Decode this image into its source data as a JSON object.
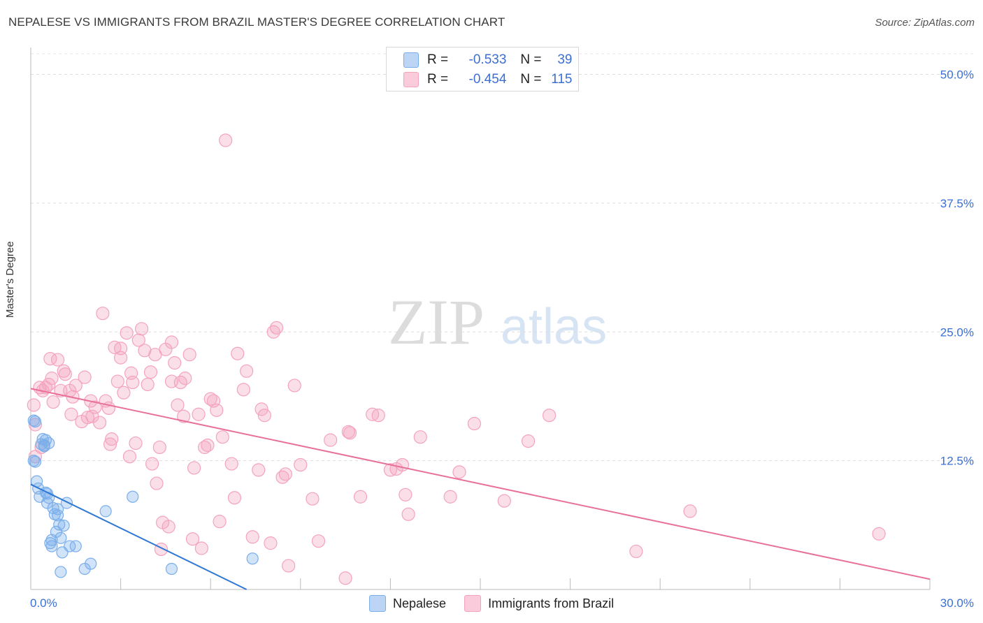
{
  "header": {
    "title": "NEPALESE VS IMMIGRANTS FROM BRAZIL MASTER'S DEGREE CORRELATION CHART",
    "source": "Source: ZipAtlas.com"
  },
  "watermark": {
    "zip": "ZIP",
    "atlas": "atlas"
  },
  "legend": {
    "nepalese": {
      "r_label": "R =",
      "r_value": "-0.533",
      "n_label": "N =",
      "n_value": "39"
    },
    "brazil": {
      "r_label": "R =",
      "r_value": "-0.454",
      "n_label": "N =",
      "n_value": "115"
    }
  },
  "chart_data": {
    "type": "scatter",
    "title": "NEPALESE VS IMMIGRANTS FROM BRAZIL MASTER'S DEGREE CORRELATION CHART",
    "xlabel": "",
    "ylabel": "Master's Degree",
    "xlim": [
      0,
      30
    ],
    "ylim": [
      0,
      52
    ],
    "x_tick_labels": [
      "0.0%",
      "30.0%"
    ],
    "y_ticks": [
      12.5,
      25.0,
      37.5,
      50.0
    ],
    "y_tick_labels": [
      "12.5%",
      "25.0%",
      "37.5%",
      "50.0%"
    ],
    "grid": "horizontal dashed",
    "legend_placement": "top-center",
    "colors": {
      "nepalese": "#7aaeea",
      "nepalese_line": "#2f78d4",
      "brazil": "#f4a3bd",
      "brazil_line": "#e8709a",
      "axis_text": "#3b6fd4"
    },
    "series": [
      {
        "name": "Nepalese",
        "r": -0.533,
        "n": 39,
        "trend": {
          "x": [
            0.0,
            7.2
          ],
          "y": [
            10.2,
            0.0
          ]
        },
        "points": [
          [
            0.1,
            16.4
          ],
          [
            0.15,
            16.3
          ],
          [
            0.1,
            12.5
          ],
          [
            0.15,
            12.4
          ],
          [
            0.2,
            10.5
          ],
          [
            0.25,
            9.8
          ],
          [
            0.3,
            9.0
          ],
          [
            0.35,
            14.1
          ],
          [
            0.4,
            14.6
          ],
          [
            0.45,
            14.0
          ],
          [
            0.5,
            14.5
          ],
          [
            0.55,
            9.3
          ],
          [
            0.6,
            14.2
          ],
          [
            0.55,
            8.4
          ],
          [
            0.65,
            4.5
          ],
          [
            0.7,
            4.8
          ],
          [
            0.75,
            7.9
          ],
          [
            0.8,
            7.3
          ],
          [
            0.85,
            5.6
          ],
          [
            0.9,
            7.8
          ],
          [
            0.95,
            6.3
          ],
          [
            1.0,
            5.0
          ],
          [
            1.1,
            6.2
          ],
          [
            1.05,
            3.6
          ],
          [
            1.2,
            8.4
          ],
          [
            1.3,
            4.2
          ],
          [
            1.5,
            4.2
          ],
          [
            1.8,
            2.0
          ],
          [
            2.0,
            2.5
          ],
          [
            2.5,
            7.6
          ],
          [
            3.4,
            9.0
          ],
          [
            4.7,
            2.0
          ],
          [
            7.4,
            3.0
          ],
          [
            0.6,
            8.9
          ],
          [
            1.0,
            1.7
          ],
          [
            0.9,
            7.2
          ],
          [
            0.45,
            13.9
          ],
          [
            0.7,
            4.2
          ],
          [
            0.5,
            9.4
          ]
        ]
      },
      {
        "name": "Immigrants from Brazil",
        "r": -0.454,
        "n": 115,
        "trend": {
          "x": [
            0.0,
            30.0
          ],
          "y": [
            19.5,
            1.0
          ]
        },
        "points": [
          [
            0.1,
            17.9
          ],
          [
            0.15,
            16.0
          ],
          [
            0.15,
            12.9
          ],
          [
            0.3,
            19.6
          ],
          [
            0.35,
            13.8
          ],
          [
            0.4,
            19.3
          ],
          [
            0.5,
            19.6
          ],
          [
            0.6,
            19.9
          ],
          [
            0.65,
            22.4
          ],
          [
            0.7,
            20.5
          ],
          [
            0.75,
            18.2
          ],
          [
            0.9,
            22.3
          ],
          [
            1.0,
            19.3
          ],
          [
            1.1,
            21.2
          ],
          [
            1.15,
            20.9
          ],
          [
            1.3,
            19.3
          ],
          [
            1.35,
            17.0
          ],
          [
            1.4,
            18.7
          ],
          [
            1.5,
            19.8
          ],
          [
            1.7,
            16.3
          ],
          [
            1.8,
            20.6
          ],
          [
            1.9,
            16.7
          ],
          [
            2.0,
            18.3
          ],
          [
            2.05,
            16.8
          ],
          [
            2.15,
            17.7
          ],
          [
            2.3,
            16.2
          ],
          [
            2.4,
            26.8
          ],
          [
            2.5,
            18.3
          ],
          [
            2.6,
            17.6
          ],
          [
            2.65,
            14.1
          ],
          [
            2.7,
            14.6
          ],
          [
            2.8,
            23.5
          ],
          [
            2.9,
            20.2
          ],
          [
            3.0,
            22.5
          ],
          [
            3.1,
            19.1
          ],
          [
            3.2,
            24.9
          ],
          [
            3.3,
            12.9
          ],
          [
            3.35,
            21.0
          ],
          [
            3.4,
            20.1
          ],
          [
            3.5,
            14.2
          ],
          [
            3.6,
            24.2
          ],
          [
            3.7,
            25.3
          ],
          [
            3.8,
            23.2
          ],
          [
            3.9,
            19.9
          ],
          [
            4.0,
            21.1
          ],
          [
            4.05,
            12.2
          ],
          [
            4.15,
            22.8
          ],
          [
            4.2,
            10.3
          ],
          [
            4.3,
            13.8
          ],
          [
            4.35,
            3.9
          ],
          [
            4.4,
            6.5
          ],
          [
            4.5,
            23.3
          ],
          [
            4.6,
            6.1
          ],
          [
            4.7,
            20.2
          ],
          [
            4.8,
            22.0
          ],
          [
            4.9,
            17.9
          ],
          [
            5.0,
            20.1
          ],
          [
            5.1,
            16.8
          ],
          [
            5.15,
            20.5
          ],
          [
            5.3,
            22.8
          ],
          [
            5.4,
            4.9
          ],
          [
            5.45,
            11.8
          ],
          [
            5.6,
            17.0
          ],
          [
            5.7,
            4.0
          ],
          [
            5.8,
            13.8
          ],
          [
            5.9,
            14.0
          ],
          [
            6.0,
            18.5
          ],
          [
            6.1,
            18.3
          ],
          [
            6.2,
            17.4
          ],
          [
            6.3,
            6.6
          ],
          [
            6.4,
            14.8
          ],
          [
            6.5,
            43.6
          ],
          [
            6.7,
            12.2
          ],
          [
            6.8,
            8.9
          ],
          [
            6.9,
            22.9
          ],
          [
            7.1,
            19.4
          ],
          [
            7.2,
            21.2
          ],
          [
            7.4,
            5.1
          ],
          [
            7.6,
            11.6
          ],
          [
            7.7,
            17.5
          ],
          [
            7.8,
            16.9
          ],
          [
            8.0,
            4.5
          ],
          [
            8.1,
            25.0
          ],
          [
            8.2,
            25.4
          ],
          [
            8.4,
            10.9
          ],
          [
            8.5,
            11.2
          ],
          [
            8.6,
            2.3
          ],
          [
            8.8,
            19.8
          ],
          [
            9.0,
            12.1
          ],
          [
            9.4,
            8.8
          ],
          [
            9.6,
            4.7
          ],
          [
            10.0,
            14.5
          ],
          [
            10.5,
            1.1
          ],
          [
            10.6,
            15.3
          ],
          [
            10.65,
            15.2
          ],
          [
            11.0,
            9.0
          ],
          [
            11.4,
            17.0
          ],
          [
            11.6,
            16.9
          ],
          [
            12.0,
            11.6
          ],
          [
            12.2,
            11.7
          ],
          [
            12.4,
            12.1
          ],
          [
            12.5,
            9.2
          ],
          [
            12.6,
            7.3
          ],
          [
            13.0,
            14.8
          ],
          [
            14.0,
            9.0
          ],
          [
            14.3,
            11.4
          ],
          [
            14.8,
            16.1
          ],
          [
            15.8,
            8.6
          ],
          [
            16.6,
            14.4
          ],
          [
            17.3,
            16.9
          ],
          [
            20.2,
            3.7
          ],
          [
            22.0,
            7.6
          ],
          [
            28.3,
            5.4
          ],
          [
            4.7,
            24.0
          ],
          [
            3.0,
            23.4
          ]
        ]
      }
    ]
  },
  "bottom_legend": {
    "nepalese_label": "Nepalese",
    "brazil_label": "Immigrants from Brazil"
  }
}
